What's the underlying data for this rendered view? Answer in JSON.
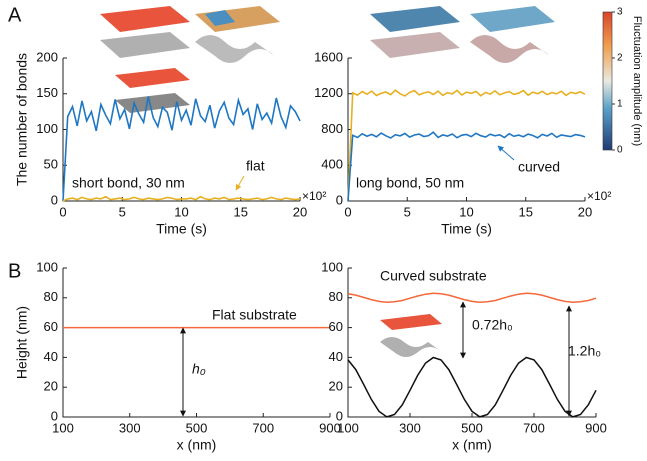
{
  "panel_labels": [
    "A",
    "B"
  ],
  "colorbar": {
    "label": "Fluctuation amplitude (nm)",
    "lim": [
      0,
      3
    ],
    "ticks": [
      0,
      1,
      2,
      3
    ]
  },
  "chart_data": [
    {
      "type": "line",
      "ylabel": "The number of bonds",
      "xlabel": "Time (s)",
      "x_multiplier": "×10²",
      "x": [
        0,
        0.4,
        0.8,
        1.2,
        1.6,
        2,
        2.4,
        2.8,
        3.2,
        3.6,
        4,
        4.4,
        4.8,
        5.2,
        5.6,
        6,
        6.4,
        6.8,
        7.2,
        7.6,
        8,
        8.4,
        8.8,
        9.2,
        9.6,
        10,
        10.4,
        10.8,
        11.2,
        11.6,
        12,
        12.4,
        12.8,
        13.2,
        13.6,
        14,
        14.4,
        14.8,
        15.2,
        15.6,
        16,
        16.4,
        16.8,
        17.2,
        17.6,
        18,
        18.4,
        18.8,
        19.2,
        19.6,
        20
      ],
      "xlim": [
        0,
        20
      ],
      "xticks": [
        0,
        5,
        10,
        15,
        20
      ],
      "ylim": [
        0,
        200
      ],
      "yticks": [
        0,
        50,
        100,
        150,
        200
      ],
      "series": [
        {
          "color": "#1f77c4",
          "values": [
            0,
            118,
            132,
            105,
            140,
            112,
            125,
            98,
            135,
            120,
            108,
            142,
            115,
            128,
            101,
            137,
            122,
            110,
            146,
            117,
            104,
            131,
            124,
            99,
            139,
            113,
            127,
            106,
            143,
            119,
            111,
            134,
            102,
            126,
            138,
            116,
            107,
            141,
            121,
            129,
            100,
            136,
            114,
            123,
            109,
            144,
            118,
            103,
            133,
            125,
            112
          ]
        },
        {
          "color": "#e8b021",
          "values": [
            0,
            3,
            4,
            2,
            5,
            3,
            2,
            4,
            3,
            6,
            2,
            3,
            4,
            2,
            3,
            5,
            3,
            2,
            4,
            3,
            2,
            3,
            5,
            4,
            2,
            3,
            3,
            4,
            2,
            6,
            3,
            2,
            4,
            3,
            5,
            2,
            3,
            4,
            3,
            2,
            3,
            4,
            2,
            3,
            5,
            3,
            2,
            4,
            3,
            2,
            3
          ]
        }
      ],
      "annotations": [
        {
          "text": "short bond, 30 nm",
          "color": "#111"
        },
        {
          "text": "flat",
          "color": "#e8b021"
        }
      ]
    },
    {
      "type": "line",
      "xlabel": "Time (s)",
      "x_multiplier": "×10²",
      "x": [
        0,
        0.4,
        0.8,
        1.2,
        1.6,
        2,
        2.4,
        2.8,
        3.2,
        3.6,
        4,
        4.4,
        4.8,
        5.2,
        5.6,
        6,
        6.4,
        6.8,
        7.2,
        7.6,
        8,
        8.4,
        8.8,
        9.2,
        9.6,
        10,
        10.4,
        10.8,
        11.2,
        11.6,
        12,
        12.4,
        12.8,
        13.2,
        13.6,
        14,
        14.4,
        14.8,
        15.2,
        15.6,
        16,
        16.4,
        16.8,
        17.2,
        17.6,
        18,
        18.4,
        18.8,
        19.2,
        19.6,
        20
      ],
      "xlim": [
        0,
        20
      ],
      "xticks": [
        0,
        5,
        10,
        15,
        20
      ],
      "ylim": [
        0,
        1600
      ],
      "yticks": [
        0,
        400,
        800,
        1200,
        1600
      ],
      "series": [
        {
          "color": "#e8b021",
          "values": [
            0,
            1210,
            1185,
            1225,
            1195,
            1230,
            1180,
            1205,
            1220,
            1190,
            1240,
            1200,
            1175,
            1215,
            1235,
            1188,
            1208,
            1222,
            1192,
            1228,
            1182,
            1212,
            1198,
            1238,
            1186,
            1218,
            1204,
            1226,
            1178,
            1214,
            1196,
            1232,
            1189,
            1209,
            1224,
            1193,
            1206,
            1236,
            1184,
            1219,
            1201,
            1227,
            1191,
            1213,
            1199,
            1229,
            1181,
            1216,
            1203,
            1223,
            1194
          ]
        },
        {
          "color": "#1f77c4",
          "values": [
            0,
            735,
            710,
            752,
            725,
            745,
            718,
            760,
            730,
            705,
            742,
            728,
            755,
            715,
            738,
            748,
            722,
            732,
            770,
            712,
            740,
            726,
            750,
            708,
            736,
            744,
            720,
            758,
            731,
            716,
            747,
            729,
            741,
            711,
            753,
            724,
            737,
            719,
            749,
            733,
            707,
            745,
            727,
            756,
            714,
            739,
            730,
            721,
            743,
            734,
            717
          ]
        }
      ],
      "annotations": [
        {
          "text": "long bond, 50 nm",
          "color": "#111"
        },
        {
          "text": "curved",
          "color": "#1f77c4"
        }
      ]
    },
    {
      "type": "line",
      "ylabel": "Height (nm)",
      "xlabel": "x (nm)",
      "x": [
        100,
        900
      ],
      "xlim": [
        100,
        900
      ],
      "xticks": [
        100,
        300,
        500,
        700,
        900
      ],
      "ylim": [
        0,
        100
      ],
      "yticks": [
        0,
        20,
        40,
        60,
        80,
        100
      ],
      "series": [
        {
          "color": "#f4683a",
          "values": [
            60,
            60
          ]
        }
      ],
      "annotations": [
        {
          "text": "Flat substrate",
          "color": "#111"
        },
        {
          "text": "h₀",
          "color": "#111"
        }
      ]
    },
    {
      "type": "line",
      "xlabel": "x (nm)",
      "x": [
        100,
        125,
        150,
        175,
        200,
        225,
        250,
        275,
        300,
        325,
        350,
        375,
        400,
        425,
        450,
        475,
        500,
        525,
        550,
        575,
        600,
        625,
        650,
        675,
        700,
        725,
        750,
        775,
        800,
        825,
        850,
        875,
        900
      ],
      "xlim": [
        100,
        900
      ],
      "xticks": [
        100,
        300,
        500,
        700,
        900
      ],
      "ylim": [
        0,
        100
      ],
      "yticks": [
        0,
        20,
        40,
        60,
        80,
        100
      ],
      "series": [
        {
          "color": "#f4683a",
          "values": [
            82.7,
            81.8,
            80.3,
            78.8,
            77.6,
            77.0,
            77.3,
            78.2,
            79.7,
            81.2,
            82.4,
            83.0,
            82.7,
            81.8,
            80.3,
            78.8,
            77.6,
            77.0,
            77.3,
            78.2,
            79.7,
            81.2,
            82.4,
            83.0,
            82.7,
            81.8,
            80.3,
            78.8,
            77.6,
            77.0,
            77.3,
            78.2,
            79.7
          ]
        },
        {
          "color": "#111111",
          "values": [
            38.3,
            31.8,
            22.1,
            11.9,
            3.8,
            0.1,
            1.7,
            8.2,
            17.9,
            28.1,
            36.2,
            39.9,
            38.3,
            31.8,
            22.1,
            11.9,
            3.8,
            0.1,
            1.7,
            8.2,
            17.9,
            28.1,
            36.2,
            39.9,
            38.3,
            31.8,
            22.1,
            11.9,
            3.8,
            0.1,
            1.7,
            8.2,
            17.9
          ]
        }
      ],
      "annotations": [
        {
          "text": "Curved substrate",
          "color": "#111"
        },
        {
          "text": "0.72h₀",
          "color": "#111"
        },
        {
          "text": "1.2h₀",
          "color": "#111"
        }
      ]
    }
  ]
}
